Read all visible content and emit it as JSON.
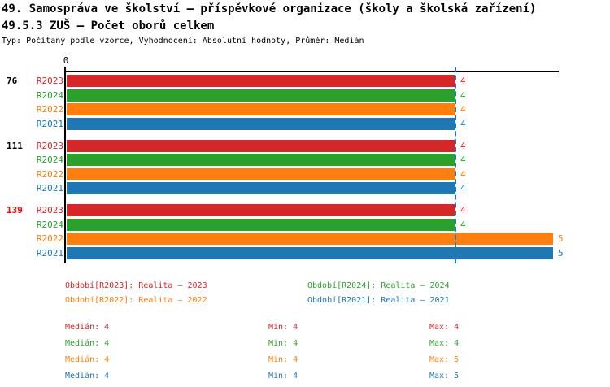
{
  "header": {
    "title1": "49. Samospráva ve školství – příspěvkové organizace (školy a školská zařízení)",
    "title2": "49.5.3 ZUŠ – Počet oborů celkem",
    "meta": "Typ: Počítaný podle vzorce, Vyhodnocení: Absolutní hodnoty, Průměr: Medián"
  },
  "colors": {
    "R2023": "#d62728",
    "R2024": "#2ca02c",
    "R2022": "#ff7f0e",
    "R2021": "#1f77b4",
    "axis": "#000000",
    "median_line": "#1f77b4",
    "group_highlight": "#ff0000",
    "group_normal": "#000000"
  },
  "chart_data": {
    "type": "bar",
    "orientation": "horizontal",
    "title": "49.5.3 ZUŠ – Počet oborů celkem",
    "axis_origin_label": "0",
    "xlim": [
      0,
      5
    ],
    "grid": false,
    "median_reference_value": 4,
    "series_order": [
      "R2023",
      "R2024",
      "R2022",
      "R2021"
    ],
    "groups": [
      {
        "label": "76",
        "highlight": false,
        "values": {
          "R2023": 4,
          "R2024": 4,
          "R2022": 4,
          "R2021": 4
        }
      },
      {
        "label": "111",
        "highlight": false,
        "values": {
          "R2023": 4,
          "R2024": 4,
          "R2022": 4,
          "R2021": 4
        }
      },
      {
        "label": "139",
        "highlight": true,
        "values": {
          "R2023": 4,
          "R2024": 4,
          "R2022": 5,
          "R2021": 5
        }
      }
    ]
  },
  "legend": [
    {
      "series": "R2023",
      "label": "Období[R2023]: Realita – 2023"
    },
    {
      "series": "R2024",
      "label": "Období[R2024]: Realita – 2024"
    },
    {
      "series": "R2022",
      "label": "Období[R2022]: Realita – 2022"
    },
    {
      "series": "R2021",
      "label": "Období[R2021]: Realita – 2021"
    }
  ],
  "stats_labels": {
    "median": "Medián",
    "min": "Min",
    "max": "Max"
  },
  "stats": [
    {
      "series": "R2023",
      "median": 4,
      "min": 4,
      "max": 4
    },
    {
      "series": "R2024",
      "median": 4,
      "min": 4,
      "max": 4
    },
    {
      "series": "R2022",
      "median": 4,
      "min": 4,
      "max": 5
    },
    {
      "series": "R2021",
      "median": 4,
      "min": 4,
      "max": 5
    }
  ]
}
